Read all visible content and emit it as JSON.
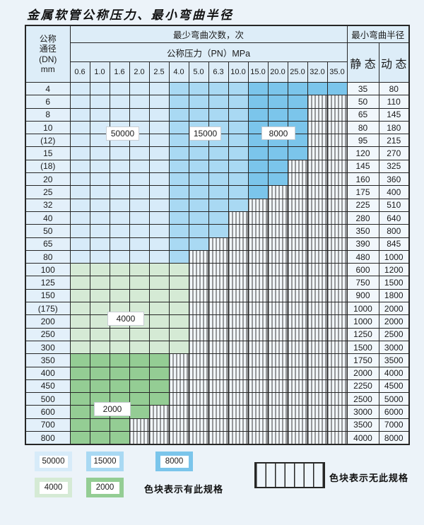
{
  "title": "金属软管公称压力、最小弯曲半径",
  "table": {
    "dn_header_lines": [
      "公称",
      "通径",
      "(DN)",
      "mm"
    ],
    "bend_header": "最少弯曲次数，次",
    "pressure_header": "公称压力（PN）MPa",
    "radius_header": "最小弯曲半径",
    "static_header": "静 态",
    "dynamic_header": "动 态"
  },
  "legend": {
    "items": [
      {
        "label": "50000",
        "color": "#d7ebf9"
      },
      {
        "label": "15000",
        "color": "#a9d9f3"
      },
      {
        "label": "8000",
        "color": "#7bc5eb"
      },
      {
        "label": "4000",
        "color": "#d5ead5"
      },
      {
        "label": "2000",
        "color": "#94cd94"
      }
    ],
    "colored_note": "色块表示有此规格",
    "hatched_note": "色块表示无此规格"
  },
  "colors": {
    "page_bg": "#ecf3f9",
    "header_bg": "#ddedf8",
    "dn_col_bg": "#e3f0fa",
    "value_col_bg": "#f1f7fc",
    "hatch_bg": "#f2f7fb",
    "hatch_line": "#3a3a3a",
    "grid_line": "#262626",
    "blue_50000": "#d7ebf9",
    "blue_15000": "#a9d9f3",
    "blue_8000": "#7bc5eb",
    "green_4000": "#d5ead5",
    "green_2000": "#94cd94"
  },
  "chart_data": {
    "type": "table",
    "title": "金属软管公称压力、最小弯曲半径",
    "columns_pn_mpa": [
      "0.6",
      "1.0",
      "1.6",
      "2.0",
      "2.5",
      "4.0",
      "5.0",
      "6.3",
      "10.0",
      "15.0",
      "20.0",
      "25.0",
      "32.0",
      "35.0"
    ],
    "bend_cycle_zones": [
      {
        "cycles": "50000",
        "palette": "blue",
        "pn_range": [
          "0.6",
          "2.5"
        ],
        "to_col_index": 4,
        "color": "#d7ebf9"
      },
      {
        "cycles": "15000",
        "palette": "blue",
        "pn_range": [
          "4.0",
          "10.0"
        ],
        "to_col_index": 8,
        "color": "#a9d9f3"
      },
      {
        "cycles": "8000",
        "palette": "blue",
        "pn_range": [
          "15.0",
          "35.0"
        ],
        "to_col_index": 13,
        "color": "#7bc5eb"
      },
      {
        "cycles": "4000",
        "palette": "g4000",
        "dn_range": [
          "100",
          "300"
        ],
        "color": "#d5ead5"
      },
      {
        "cycles": "2000",
        "palette": "g2000",
        "dn_range": [
          "350",
          "800"
        ],
        "color": "#94cd94"
      }
    ],
    "rows": [
      {
        "dn": "4",
        "available_through_pn": "35.0",
        "palette": "blue",
        "static_radius": "35",
        "dynamic_radius": "80"
      },
      {
        "dn": "6",
        "available_through_pn": "25.0",
        "palette": "blue",
        "static_radius": "50",
        "dynamic_radius": "110"
      },
      {
        "dn": "8",
        "available_through_pn": "25.0",
        "palette": "blue",
        "static_radius": "65",
        "dynamic_radius": "145"
      },
      {
        "dn": "10",
        "available_through_pn": "25.0",
        "palette": "blue",
        "static_radius": "80",
        "dynamic_radius": "180"
      },
      {
        "dn": "(12)",
        "available_through_pn": "25.0",
        "palette": "blue",
        "static_radius": "95",
        "dynamic_radius": "215"
      },
      {
        "dn": "15",
        "available_through_pn": "25.0",
        "palette": "blue",
        "static_radius": "120",
        "dynamic_radius": "270"
      },
      {
        "dn": "(18)",
        "available_through_pn": "20.0",
        "palette": "blue",
        "static_radius": "145",
        "dynamic_radius": "325"
      },
      {
        "dn": "20",
        "available_through_pn": "20.0",
        "palette": "blue",
        "static_radius": "160",
        "dynamic_radius": "360"
      },
      {
        "dn": "25",
        "available_through_pn": "15.0",
        "palette": "blue",
        "static_radius": "175",
        "dynamic_radius": "400"
      },
      {
        "dn": "32",
        "available_through_pn": "10.0",
        "palette": "blue",
        "static_radius": "225",
        "dynamic_radius": "510"
      },
      {
        "dn": "40",
        "available_through_pn": "6.3",
        "palette": "blue",
        "static_radius": "280",
        "dynamic_radius": "640"
      },
      {
        "dn": "50",
        "available_through_pn": "6.3",
        "palette": "blue",
        "static_radius": "350",
        "dynamic_radius": "800"
      },
      {
        "dn": "65",
        "available_through_pn": "5.0",
        "palette": "blue",
        "static_radius": "390",
        "dynamic_radius": "845"
      },
      {
        "dn": "80",
        "available_through_pn": "4.0",
        "palette": "blue",
        "static_radius": "480",
        "dynamic_radius": "1000"
      },
      {
        "dn": "100",
        "available_through_pn": "4.0",
        "palette": "g4000",
        "static_radius": "600",
        "dynamic_radius": "1200"
      },
      {
        "dn": "125",
        "available_through_pn": "4.0",
        "palette": "g4000",
        "static_radius": "750",
        "dynamic_radius": "1500"
      },
      {
        "dn": "150",
        "available_through_pn": "4.0",
        "palette": "g4000",
        "static_radius": "900",
        "dynamic_radius": "1800"
      },
      {
        "dn": "(175)",
        "available_through_pn": "4.0",
        "palette": "g4000",
        "static_radius": "1000",
        "dynamic_radius": "2000"
      },
      {
        "dn": "200",
        "available_through_pn": "4.0",
        "palette": "g4000",
        "static_radius": "1000",
        "dynamic_radius": "2000"
      },
      {
        "dn": "250",
        "available_through_pn": "4.0",
        "palette": "g4000",
        "static_radius": "1250",
        "dynamic_radius": "2500"
      },
      {
        "dn": "300",
        "available_through_pn": "4.0",
        "palette": "g4000",
        "static_radius": "1500",
        "dynamic_radius": "3000"
      },
      {
        "dn": "350",
        "available_through_pn": "2.5",
        "palette": "g2000",
        "static_radius": "1750",
        "dynamic_radius": "3500"
      },
      {
        "dn": "400",
        "available_through_pn": "2.5",
        "palette": "g2000",
        "static_radius": "2000",
        "dynamic_radius": "4000"
      },
      {
        "dn": "450",
        "available_through_pn": "2.5",
        "palette": "g2000",
        "static_radius": "2250",
        "dynamic_radius": "4500"
      },
      {
        "dn": "500",
        "available_through_pn": "2.5",
        "palette": "g2000",
        "static_radius": "2500",
        "dynamic_radius": "5000"
      },
      {
        "dn": "600",
        "available_through_pn": "2.0",
        "palette": "g2000",
        "static_radius": "3000",
        "dynamic_radius": "6000"
      },
      {
        "dn": "700",
        "available_through_pn": "1.6",
        "palette": "g2000",
        "static_radius": "3500",
        "dynamic_radius": "7000"
      },
      {
        "dn": "800",
        "available_through_pn": "1.6",
        "palette": "g2000",
        "static_radius": "4000",
        "dynamic_radius": "8000"
      }
    ]
  }
}
